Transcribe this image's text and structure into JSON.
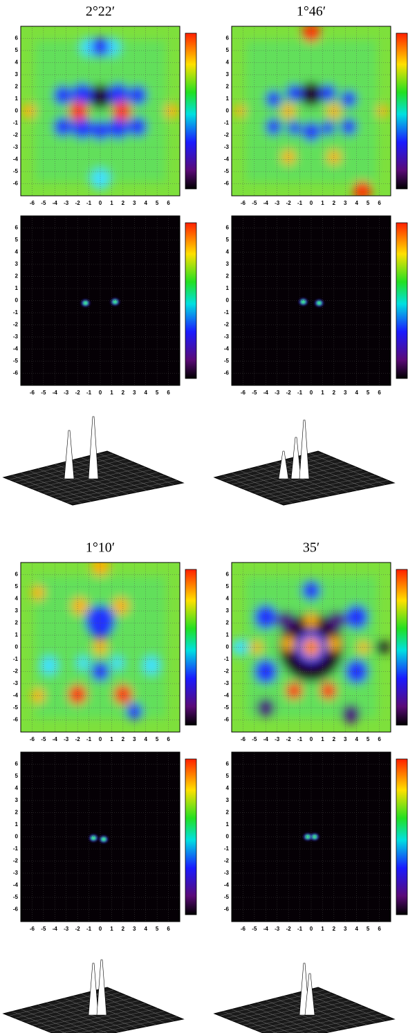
{
  "chart_data": [
    {
      "type": "heatmap",
      "title": "2°22′",
      "xlim": [
        -7,
        7
      ],
      "ylim": [
        -7,
        7
      ],
      "xticks": [
        -6,
        -5,
        -4,
        -3,
        -2,
        -1,
        0,
        1,
        2,
        3,
        4,
        5,
        6
      ],
      "yticks": [
        -6,
        -5,
        -4,
        -3,
        -2,
        -1,
        0,
        1,
        2,
        3,
        4,
        5,
        6
      ],
      "grid": true
    },
    {
      "type": "heatmap",
      "xlim": [
        -7,
        7
      ],
      "ylim": [
        -7,
        7
      ],
      "xticks": [
        -6,
        -5,
        -4,
        -3,
        -2,
        -1,
        0,
        1,
        2,
        3,
        4,
        5,
        6
      ],
      "yticks": [
        -6,
        -5,
        -4,
        -3,
        -2,
        -1,
        0,
        1,
        2,
        3,
        4,
        5,
        6
      ],
      "grid": true
    },
    {
      "type": "heatmap",
      "title": "1°46′",
      "xlim": [
        -7,
        7
      ],
      "ylim": [
        -7,
        7
      ],
      "xticks": [
        -6,
        -5,
        -4,
        -3,
        -2,
        -1,
        0,
        1,
        2,
        3,
        4,
        5,
        6
      ],
      "yticks": [
        -6,
        -5,
        -4,
        -3,
        -2,
        -1,
        0,
        1,
        2,
        3,
        4,
        5,
        6
      ],
      "grid": true
    },
    {
      "type": "heatmap",
      "xlim": [
        -7,
        7
      ],
      "ylim": [
        -7,
        7
      ],
      "xticks": [
        -6,
        -5,
        -4,
        -3,
        -2,
        -1,
        0,
        1,
        2,
        3,
        4,
        5,
        6
      ],
      "yticks": [
        -6,
        -5,
        -4,
        -3,
        -2,
        -1,
        0,
        1,
        2,
        3,
        4,
        5,
        6
      ],
      "grid": true
    },
    {
      "type": "heatmap",
      "title": "1°10′",
      "xlim": [
        -7,
        7
      ],
      "ylim": [
        -7,
        7
      ],
      "xticks": [
        -6,
        -5,
        -4,
        -3,
        -2,
        -1,
        0,
        1,
        2,
        3,
        4,
        5,
        6
      ],
      "yticks": [
        -6,
        -5,
        -4,
        -3,
        -2,
        -1,
        0,
        1,
        2,
        3,
        4,
        5,
        6
      ],
      "grid": true
    },
    {
      "type": "heatmap",
      "xlim": [
        -7,
        7
      ],
      "ylim": [
        -7,
        7
      ],
      "xticks": [
        -6,
        -5,
        -4,
        -3,
        -2,
        -1,
        0,
        1,
        2,
        3,
        4,
        5,
        6
      ],
      "yticks": [
        -6,
        -5,
        -4,
        -3,
        -2,
        -1,
        0,
        1,
        2,
        3,
        4,
        5,
        6
      ],
      "grid": true
    },
    {
      "type": "heatmap",
      "title": "35′",
      "xlim": [
        -7,
        7
      ],
      "ylim": [
        -7,
        7
      ],
      "xticks": [
        -6,
        -5,
        -4,
        -3,
        -2,
        -1,
        0,
        1,
        2,
        3,
        4,
        5,
        6
      ],
      "yticks": [
        -6,
        -5,
        -4,
        -3,
        -2,
        -1,
        0,
        1,
        2,
        3,
        4,
        5,
        6
      ],
      "grid": true
    },
    {
      "type": "heatmap",
      "xlim": [
        -7,
        7
      ],
      "ylim": [
        -7,
        7
      ],
      "xticks": [
        -6,
        -5,
        -4,
        -3,
        -2,
        -1,
        0,
        1,
        2,
        3,
        4,
        5,
        6
      ],
      "yticks": [
        -6,
        -5,
        -4,
        -3,
        -2,
        -1,
        0,
        1,
        2,
        3,
        4,
        5,
        6
      ],
      "grid": true
    }
  ]
}
